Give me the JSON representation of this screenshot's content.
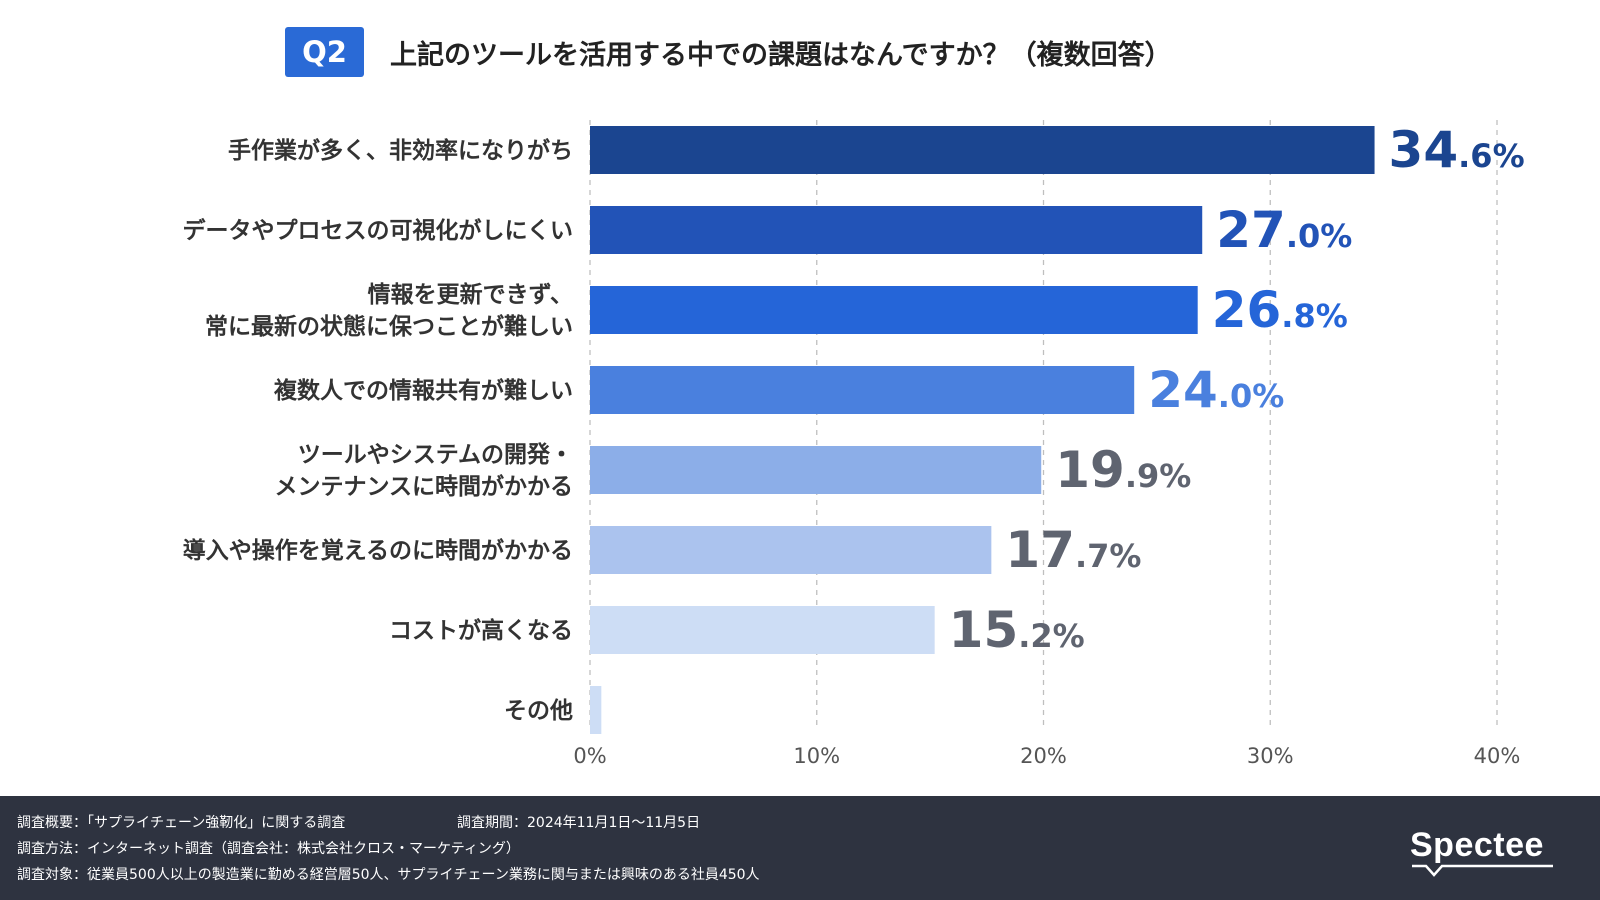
{
  "title": {
    "badge": "Q2",
    "text": "上記のツールを活用する中での課題はなんですか？（複数回答）"
  },
  "colors": {
    "bars": [
      "#1b4590",
      "#2253b7",
      "#2565d8",
      "#4a80de",
      "#8caee8",
      "#abc3ee",
      "#cdddf5",
      "#cdddf5"
    ],
    "value_labels": [
      "#1b4590",
      "#2253b7",
      "#2565d8",
      "#4a80de",
      "#5f6470",
      "#5f6470",
      "#5f6470",
      "#5f6470"
    ],
    "grid": "#bfbfbf",
    "footer_bg": "#2e3340"
  },
  "chart_data": {
    "type": "bar",
    "orientation": "horizontal",
    "categories": [
      "手作業が多く、非効率になりがち",
      "データやプロセスの可視化がしにくい",
      "情報を更新できず、\n常に最新の状態に保つことが難しい",
      "複数人での情報共有が難しい",
      "ツールやシステムの開発・\nメンテナンスに時間がかかる",
      "導入や操作を覚えるのに時間がかかる",
      "コストが高くなる",
      "その他"
    ],
    "values": [
      34.6,
      27.0,
      26.8,
      24.0,
      19.9,
      17.7,
      15.2,
      0.5
    ],
    "value_labels": [
      {
        "int": "34",
        "dec": ".6%"
      },
      {
        "int": "27",
        "dec": ".0%"
      },
      {
        "int": "26",
        "dec": ".8%"
      },
      {
        "int": "24",
        "dec": ".0%"
      },
      {
        "int": "19",
        "dec": ".9%"
      },
      {
        "int": "17",
        "dec": ".7%"
      },
      {
        "int": "15",
        "dec": ".2%"
      },
      null
    ],
    "xlim": [
      0,
      40
    ],
    "xticks": [
      0,
      10,
      20,
      30,
      40
    ],
    "xtick_labels": [
      "0%",
      "10%",
      "20%",
      "30%",
      "40%"
    ],
    "grid": true
  },
  "footer": {
    "line1": "調査概要：「サプライチェーン強靭化」に関する調査",
    "period": "調査期間：2024年11月1日〜11月5日",
    "line2": "調査方法：インターネット調査（調査会社：株式会社クロス・マーケティング）",
    "line3": "調査対象：従業員500人以上の製造業に勤める経営層50人、サプライチェーン業務に関与または興味のある社員450人",
    "logo": "Spectee"
  }
}
